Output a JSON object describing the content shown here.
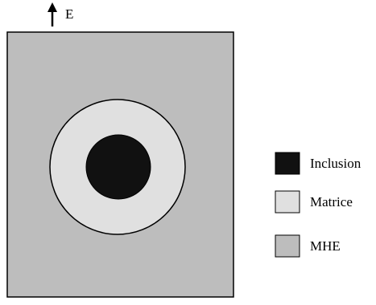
{
  "field_label": "E",
  "legend": [
    {
      "label": "Inclusion",
      "color": "#111111"
    },
    {
      "label": "Matrice",
      "color": "#e0e0e0"
    },
    {
      "label": "MHE",
      "color": "#bdbdbd"
    }
  ],
  "colors": {
    "outline": "#000000",
    "mhe": "#bdbdbd",
    "matrice": "#e0e0e0",
    "inclusion": "#111111"
  }
}
